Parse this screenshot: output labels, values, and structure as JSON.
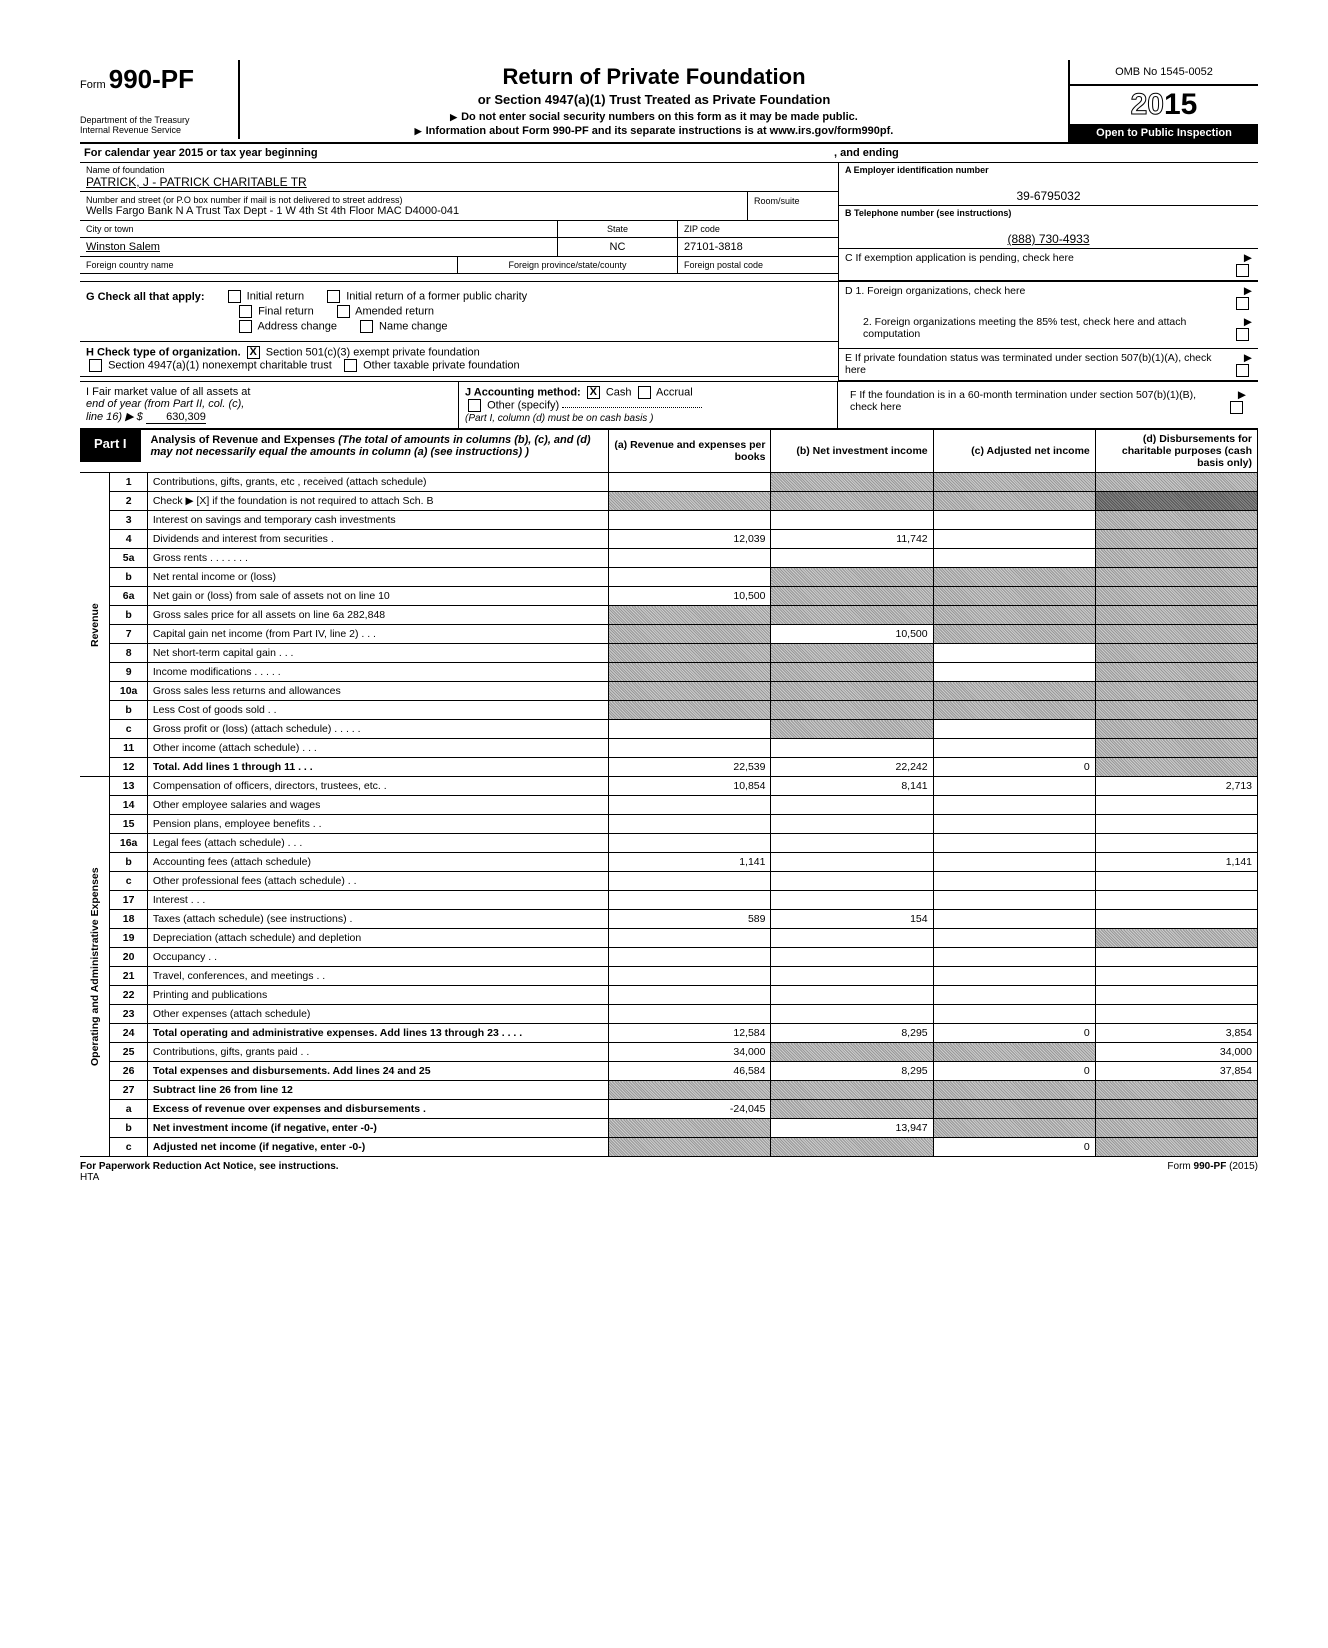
{
  "header": {
    "form_prefix": "Form",
    "form_number": "990-PF",
    "dept": "Department of the Treasury",
    "irs": "Internal Revenue Service",
    "title": "Return of Private Foundation",
    "subtitle": "or Section 4947(a)(1) Trust Treated as Private Foundation",
    "note1": "Do not enter social security numbers on this form as it may be made public.",
    "note2": "Information about Form 990-PF and its separate instructions is at www.irs.gov/form990pf.",
    "omb": "OMB No 1545-0052",
    "year_prefix": "20",
    "year_suffix": "15",
    "otpi": "Open to Public Inspection"
  },
  "calyear": {
    "text": "For calendar year 2015 or tax year beginning",
    "ending": ", and ending"
  },
  "entity": {
    "name_lbl": "Name of foundation",
    "name": "PATRICK, J  -  PATRICK CHARITABLE TR",
    "addr_lbl": "Number and street (or P.O  box number if mail is not delivered to street address)",
    "room_lbl": "Room/suite",
    "address": "Wells Fargo Bank N A  Trust Tax Dept - 1 W 4th St 4th Floor MAC D4000-041",
    "city_lbl": "City or town",
    "state_lbl": "State",
    "zip_lbl": "ZIP code",
    "city": "Winston Salem",
    "state": "NC",
    "zip": "27101-3818",
    "foreign_country_lbl": "Foreign country name",
    "foreign_state_lbl": "Foreign province/state/county",
    "foreign_postal_lbl": "Foreign postal code"
  },
  "rightbox": {
    "a_lbl": "A  Employer identification number",
    "ein": "39-6795032",
    "b_lbl": "B  Telephone number (see instructions)",
    "phone": "(888) 730-4933",
    "c_lbl": "C   If exemption application is pending, check here",
    "d1": "D  1. Foreign organizations, check here",
    "d2": "2. Foreign organizations meeting the 85% test, check here and attach computation",
    "e_lbl": "E   If private foundation status was terminated under section 507(b)(1)(A), check here",
    "f_lbl": "F   If the foundation is in a 60-month termination under section 507(b)(1)(B), check here"
  },
  "sectionG": {
    "label": "G   Check all that apply:",
    "initial": "Initial return",
    "initial_former": "Initial return of a former public charity",
    "final": "Final return",
    "amended": "Amended return",
    "addr_change": "Address change",
    "name_change": "Name change"
  },
  "sectionH": {
    "label": "H   Check type of organization.",
    "opt1": "Section 501(c)(3) exempt private foundation",
    "opt2": "Section 4947(a)(1) nonexempt charitable trust",
    "opt3": "Other taxable private foundation"
  },
  "sectionI": {
    "line1": "I     Fair market value of all assets at",
    "line2": "end of year (from Part II, col. (c),",
    "line3": "line 16)  ▶  $",
    "value": "630,309"
  },
  "sectionJ": {
    "label": "J    Accounting method:",
    "cash": "Cash",
    "accrual": "Accrual",
    "other": "Other (specify)",
    "note": "(Part I, column (d) must be on cash basis )"
  },
  "part1": {
    "label": "Part I",
    "title": "Analysis of Revenue and Expenses",
    "desc": "(The total of amounts in columns (b), (c), and (d) may not necessarily equal the amounts in column (a) (see instructions) )",
    "col_a": "(a)  Revenue and expenses per books",
    "col_b": "(b)  Net investment income",
    "col_c": "(c)  Adjusted net income",
    "col_d": "(d)  Disbursements for charitable purposes (cash basis only)"
  },
  "vert_labels": {
    "revenue": "Revenue",
    "expenses": "Operating and Administrative Expenses"
  },
  "rows": [
    {
      "n": "1",
      "desc": "Contributions, gifts, grants, etc , received (attach schedule)",
      "a": "",
      "b": "shaded",
      "c": "shaded",
      "d": "shaded"
    },
    {
      "n": "2",
      "desc": "Check ▶ [X] if the foundation is not required to attach Sch. B",
      "a": "shaded",
      "b": "shaded",
      "c": "shaded",
      "d": "shaded-dark"
    },
    {
      "n": "3",
      "desc": "Interest on savings and temporary cash investments",
      "a": "",
      "b": "",
      "c": "",
      "d": "shaded"
    },
    {
      "n": "4",
      "desc": "Dividends and interest from securities   .",
      "a": "12,039",
      "b": "11,742",
      "c": "",
      "d": "shaded"
    },
    {
      "n": "5a",
      "desc": "Gross rents    .    .    .    .    .    .    .",
      "a": "",
      "b": "",
      "c": "",
      "d": "shaded"
    },
    {
      "n": "b",
      "desc": "Net rental income or (loss)",
      "a": "",
      "b": "shaded",
      "c": "shaded",
      "d": "shaded"
    },
    {
      "n": "6a",
      "desc": "Net gain or (loss) from sale of assets not on line 10",
      "a": "10,500",
      "b": "shaded",
      "c": "shaded",
      "d": "shaded"
    },
    {
      "n": "b",
      "desc": "Gross sales price for all assets on line 6a              282,848",
      "a": "shaded",
      "b": "shaded",
      "c": "shaded",
      "d": "shaded"
    },
    {
      "n": "7",
      "desc": "Capital gain net income (from Part IV, line 2)    .    .    .",
      "a": "shaded",
      "b": "10,500",
      "c": "shaded",
      "d": "shaded"
    },
    {
      "n": "8",
      "desc": "Net short-term capital gain    .    .    .",
      "a": "shaded",
      "b": "shaded",
      "c": "",
      "d": "shaded"
    },
    {
      "n": "9",
      "desc": "Income modifications    .    .    .    .    .",
      "a": "shaded",
      "b": "shaded",
      "c": "",
      "d": "shaded"
    },
    {
      "n": "10a",
      "desc": "Gross sales less returns and allowances",
      "a": "shaded",
      "b": "shaded",
      "c": "shaded",
      "d": "shaded"
    },
    {
      "n": "b",
      "desc": "Less  Cost of goods sold    .    .",
      "a": "shaded",
      "b": "shaded",
      "c": "shaded",
      "d": "shaded"
    },
    {
      "n": "c",
      "desc": "Gross profit or (loss) (attach schedule)    .    .    .    .    .",
      "a": "",
      "b": "shaded",
      "c": "",
      "d": "shaded"
    },
    {
      "n": "11",
      "desc": "Other income (attach schedule)    .    .    .",
      "a": "",
      "b": "",
      "c": "",
      "d": "shaded"
    },
    {
      "n": "12",
      "desc": "Total.  Add lines 1 through 11    .    .    .",
      "bold": true,
      "a": "22,539",
      "b": "22,242",
      "c": "0",
      "d": "shaded"
    },
    {
      "n": "13",
      "desc": "Compensation of officers, directors, trustees, etc.    .",
      "a": "10,854",
      "b": "8,141",
      "c": "",
      "d": "2,713"
    },
    {
      "n": "14",
      "desc": "Other employee salaries and wages",
      "a": "",
      "b": "",
      "c": "",
      "d": ""
    },
    {
      "n": "15",
      "desc": "Pension plans, employee benefits    .    .",
      "a": "",
      "b": "",
      "c": "",
      "d": ""
    },
    {
      "n": "16a",
      "desc": "Legal fees (attach schedule)    .    .    .",
      "a": "",
      "b": "",
      "c": "",
      "d": ""
    },
    {
      "n": "b",
      "desc": "Accounting fees (attach schedule)",
      "a": "1,141",
      "b": "",
      "c": "",
      "d": "1,141"
    },
    {
      "n": "c",
      "desc": "Other professional fees (attach schedule)    .    .",
      "a": "",
      "b": "",
      "c": "",
      "d": ""
    },
    {
      "n": "17",
      "desc": "Interest    .    .    .",
      "a": "",
      "b": "",
      "c": "",
      "d": ""
    },
    {
      "n": "18",
      "desc": "Taxes (attach schedule) (see instructions)   .",
      "a": "589",
      "b": "154",
      "c": "",
      "d": ""
    },
    {
      "n": "19",
      "desc": "Depreciation (attach schedule) and depletion",
      "a": "",
      "b": "",
      "c": "",
      "d": "shaded"
    },
    {
      "n": "20",
      "desc": "Occupancy    .    .",
      "a": "",
      "b": "",
      "c": "",
      "d": ""
    },
    {
      "n": "21",
      "desc": "Travel, conferences, and meetings   .    .",
      "a": "",
      "b": "",
      "c": "",
      "d": ""
    },
    {
      "n": "22",
      "desc": "Printing and publications",
      "a": "",
      "b": "",
      "c": "",
      "d": ""
    },
    {
      "n": "23",
      "desc": "Other expenses (attach schedule)",
      "a": "",
      "b": "",
      "c": "",
      "d": ""
    },
    {
      "n": "24",
      "desc": "Total operating and administrative expenses. Add lines 13 through 23    .    .    .    .",
      "bold": true,
      "a": "12,584",
      "b": "8,295",
      "c": "0",
      "d": "3,854"
    },
    {
      "n": "25",
      "desc": "Contributions, gifts, grants paid    .    .",
      "a": "34,000",
      "b": "shaded",
      "c": "shaded",
      "d": "34,000"
    },
    {
      "n": "26",
      "desc": "Total expenses and disbursements. Add lines 24 and 25",
      "bold": true,
      "a": "46,584",
      "b": "8,295",
      "c": "0",
      "d": "37,854"
    },
    {
      "n": "27",
      "desc": "Subtract line 26 from line 12",
      "bold": true,
      "a": "shaded",
      "b": "shaded",
      "c": "shaded",
      "d": "shaded"
    },
    {
      "n": "a",
      "desc": "Excess of revenue over expenses and disbursements   .",
      "bold": true,
      "a": "-24,045",
      "b": "shaded",
      "c": "shaded",
      "d": "shaded"
    },
    {
      "n": "b",
      "desc": "Net investment income (if negative, enter -0-)",
      "bold": true,
      "a": "shaded",
      "b": "13,947",
      "c": "shaded",
      "d": "shaded"
    },
    {
      "n": "c",
      "desc": "Adjusted net income (if negative, enter -0-)",
      "bold": true,
      "a": "shaded",
      "b": "shaded",
      "c": "0",
      "d": "shaded"
    }
  ],
  "footer": {
    "left": "For Paperwork Reduction Act Notice, see instructions.",
    "hta": "HTA",
    "right": "Form 990-PF (2015)"
  },
  "colors": {
    "black": "#000000",
    "white": "#ffffff",
    "shade_light": "#cccccc",
    "shade_dark": "#888888"
  }
}
